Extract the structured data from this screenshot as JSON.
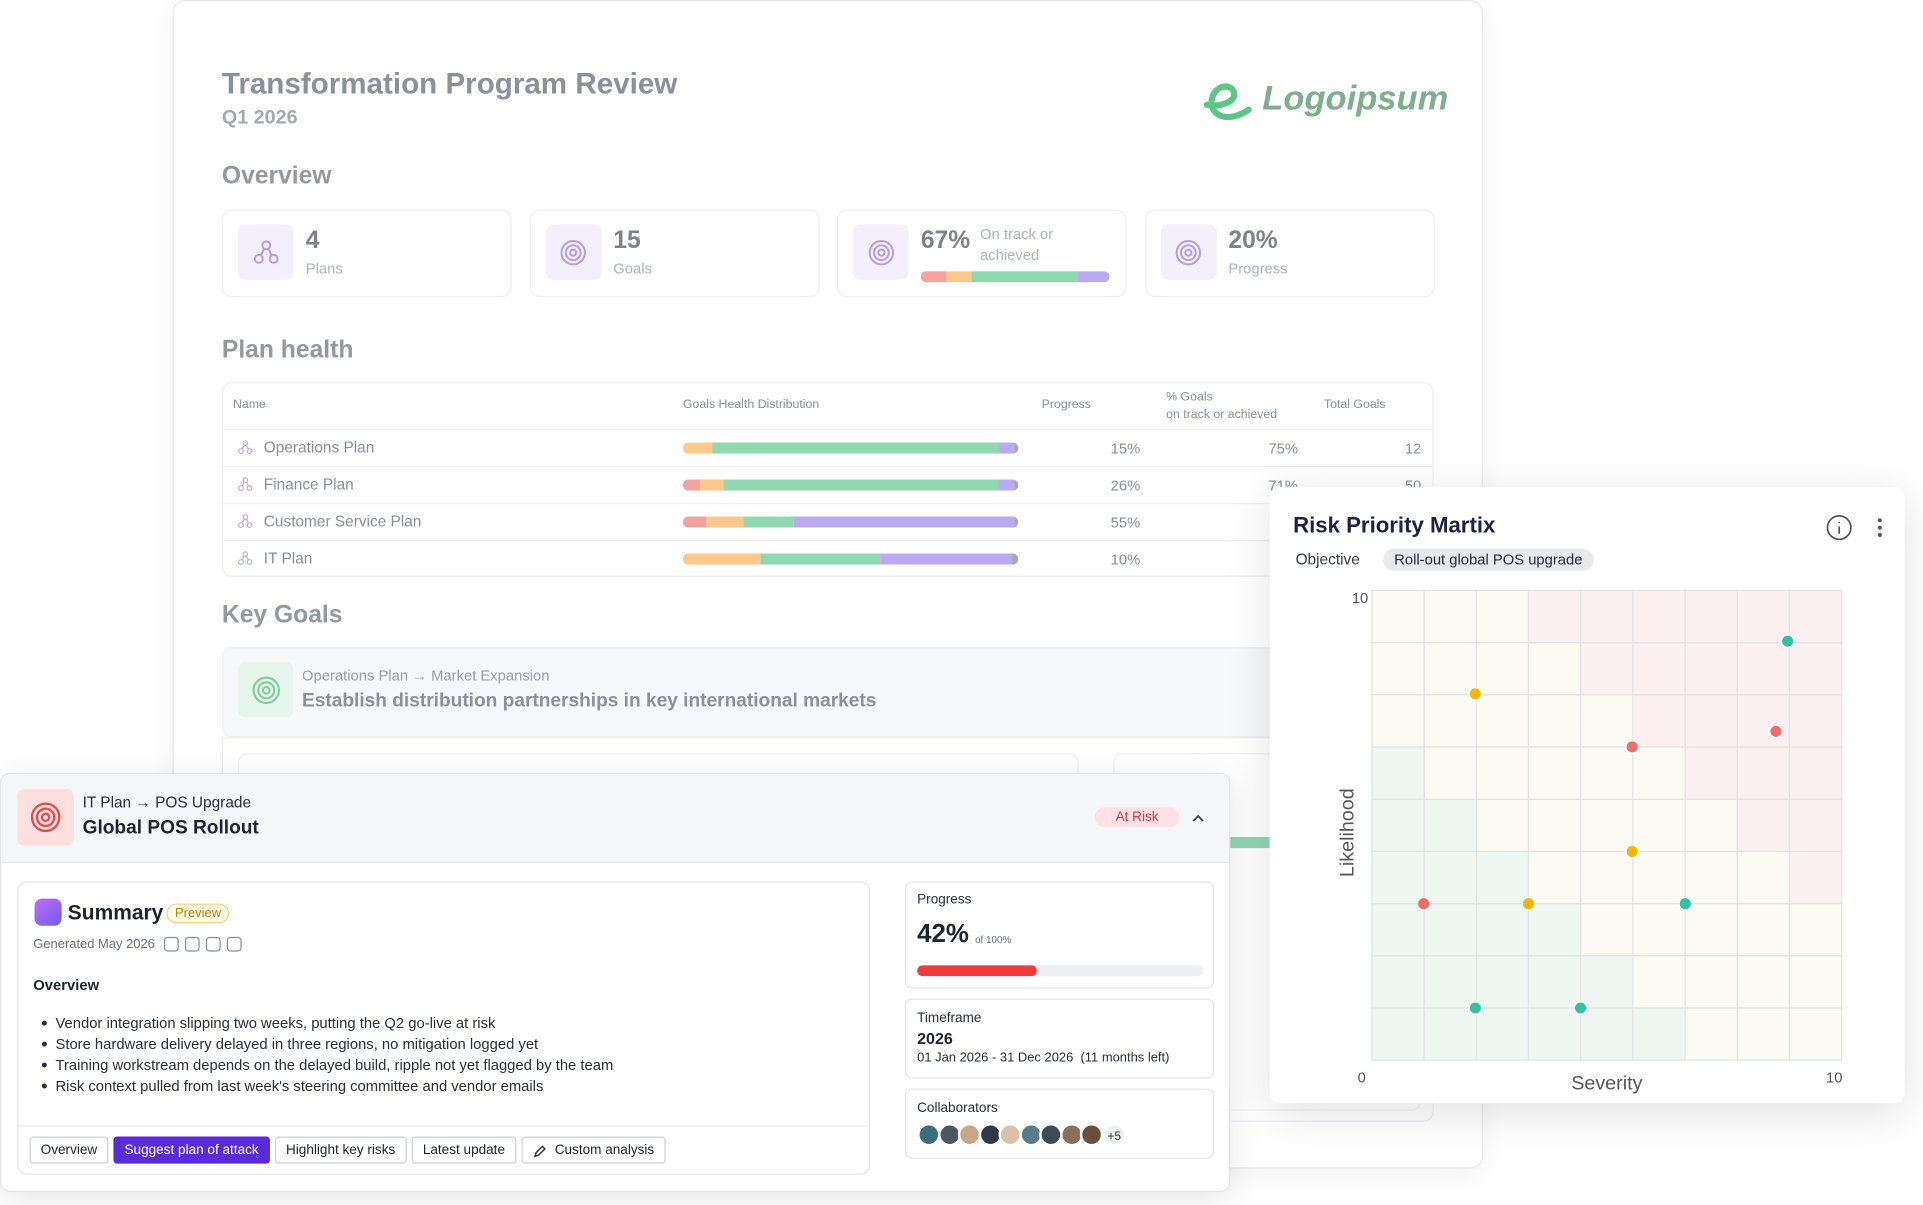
{
  "report": {
    "title": "Transformation Program Review",
    "period": "Q1 2026",
    "logo": "Logoipsum"
  },
  "health_colors": [
    "#f4a29d",
    "#fbc98c",
    "#8fd8b0",
    "#bba9f2",
    "#a9a9ab"
  ],
  "overview": {
    "heading": "Overview",
    "stats": [
      {
        "value": "4",
        "label": "Plans"
      },
      {
        "value": "15",
        "label": "Goals"
      },
      {
        "value": "67%",
        "label": "On track or achieved",
        "distribution": [
          14,
          13,
          56,
          17,
          0
        ]
      },
      {
        "value": "20%",
        "label": "Progress"
      }
    ]
  },
  "plan_health": {
    "heading": "Plan health",
    "columns": [
      "Name",
      "Goals Health Distribution",
      "Progress",
      "% Goals\non track or achieved",
      "Total Goals"
    ],
    "rows": [
      {
        "name": "Operations Plan",
        "distribution": [
          0,
          9,
          85,
          5,
          1
        ],
        "progress": "15%",
        "on_track": "75%",
        "total_goals": 12
      },
      {
        "name": "Finance Plan",
        "distribution": [
          5,
          7,
          82,
          5,
          1
        ],
        "progress": "26%",
        "on_track": "71%",
        "total_goals": 50
      },
      {
        "name": "Customer Service Plan",
        "distribution": [
          7,
          11,
          15,
          66,
          1
        ],
        "progress": "55%"
      },
      {
        "name": "IT Plan",
        "distribution": [
          0,
          23,
          36,
          39,
          2
        ],
        "progress": "10%"
      }
    ]
  },
  "key_goals": {
    "heading": "Key Goals",
    "goal": {
      "path": "Operations Plan → Market Expansion",
      "title": "Establish distribution partnerships in key international markets"
    }
  },
  "goal_detail": {
    "path": "IT Plan → POS Upgrade",
    "title": "Global POS Rollout",
    "status": "At Risk",
    "summary": {
      "heading": "Summary",
      "badge": "Preview",
      "generated": "Generated May 2026",
      "section": "Overview",
      "bullets": [
        "Vendor integration slipping two weeks, putting the Q2 go-live at risk",
        "Store hardware delivery delayed in three regions, no mitigation logged yet",
        "Training workstream depends on the delayed build, ripple not yet flagged by the team",
        "Risk context pulled from last week's steering committee and vendor emails"
      ],
      "actions": [
        "Overview",
        "Suggest plan of attack",
        "Highlight key risks",
        "Latest update",
        "Custom analysis"
      ]
    },
    "progress": {
      "heading": "Progress",
      "value": "42%",
      "of": "of 100%",
      "percent": 42
    },
    "timeframe": {
      "heading": "Timeframe",
      "year": "2026",
      "range": "01 Jan 2026 - 31 Dec 2026  (11 months left)"
    },
    "collaborators": {
      "heading": "Collaborators",
      "more": "+5"
    }
  },
  "chart_data": {
    "type": "scatter",
    "title": "Risk Priority Martix",
    "objective_label": "Objective",
    "objective": "Roll-out global POS upgrade",
    "x_label": "Severity",
    "y_label": "Likelihood",
    "xlim": [
      0,
      10
    ],
    "ylim": [
      0,
      10
    ],
    "xticks": [
      0,
      10
    ],
    "yticks": [
      10
    ],
    "series": [
      {
        "color": "#f26b6b",
        "x": [
          5.54,
          8.6,
          1.1
        ],
        "y": [
          6.67,
          7.0,
          3.33
        ]
      },
      {
        "color": "#f7b500",
        "x": [
          2.2,
          5.54,
          3.33
        ],
        "y": [
          7.8,
          4.44,
          3.33
        ]
      },
      {
        "color": "#2ec4a0",
        "x": [
          8.85,
          6.67,
          2.2,
          4.44
        ],
        "y": [
          8.92,
          3.33,
          1.11,
          1.11
        ]
      }
    ]
  }
}
